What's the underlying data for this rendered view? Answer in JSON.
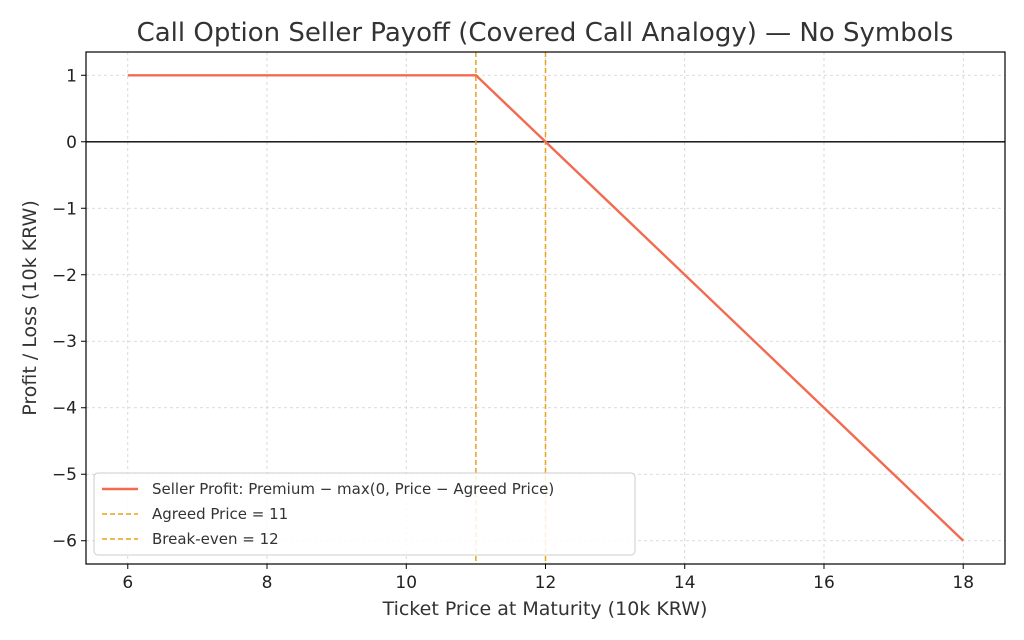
{
  "chart_data": {
    "type": "line",
    "title": "Call Option Seller Payoff (Covered Call Analogy) — No Symbols",
    "xlabel": "Ticket Price at Maturity (10k KRW)",
    "ylabel": "Profit / Loss (10k KRW)",
    "xlim": [
      5.4,
      18.6
    ],
    "ylim": [
      -6.35,
      1.35
    ],
    "xticks": [
      6,
      8,
      10,
      12,
      14,
      16,
      18
    ],
    "xtick_labels": [
      "6",
      "8",
      "10",
      "12",
      "14",
      "16",
      "18"
    ],
    "yticks": [
      1,
      0,
      -1,
      -2,
      -3,
      -4,
      -5,
      -6
    ],
    "ytick_labels": [
      "1",
      "0",
      "−1",
      "−2",
      "−3",
      "−4",
      "−5",
      "−6"
    ],
    "grid": true,
    "zero_line": 0,
    "series": [
      {
        "name": "Seller Profit: Premium − max(0, Price − Agreed Price)",
        "color": "#f26b50",
        "x": [
          6,
          11,
          18
        ],
        "y": [
          1,
          1,
          -6
        ]
      }
    ],
    "vlines": [
      {
        "name": "Agreed Price = 11",
        "x": 11,
        "color": "#e8a317"
      },
      {
        "name": "Break-even = 12",
        "x": 12,
        "color": "#e8a317"
      }
    ],
    "legend_position": "lower-left"
  }
}
